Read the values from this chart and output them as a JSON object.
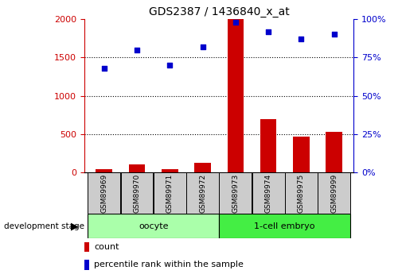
{
  "title": "GDS2387 / 1436840_x_at",
  "samples": [
    "GSM89969",
    "GSM89970",
    "GSM89971",
    "GSM89972",
    "GSM89973",
    "GSM89974",
    "GSM89975",
    "GSM89999"
  ],
  "counts": [
    50,
    105,
    50,
    125,
    2000,
    700,
    470,
    530
  ],
  "percentiles": [
    68,
    80,
    70,
    82,
    98,
    92,
    87,
    90
  ],
  "bar_color": "#cc0000",
  "scatter_color": "#0000cc",
  "ylim_left": [
    0,
    2000
  ],
  "ylim_right": [
    0,
    100
  ],
  "yticks_left": [
    0,
    500,
    1000,
    1500,
    2000
  ],
  "yticks_right": [
    0,
    25,
    50,
    75,
    100
  ],
  "groups": [
    {
      "label": "oocyte",
      "start": 0,
      "end": 3
    },
    {
      "label": "1-cell embryo",
      "start": 4,
      "end": 7
    }
  ],
  "group_label_prefix": "development stage",
  "legend_count_label": "count",
  "legend_percentile_label": "percentile rank within the sample",
  "title_color": "#000000",
  "left_axis_color": "#cc0000",
  "right_axis_color": "#0000cc",
  "grid_color": "#000000",
  "background_color": "#ffffff",
  "sample_box_color": "#cccccc",
  "oocyte_color": "#aaffaa",
  "embryo_color": "#44ee44",
  "title_fontsize": 10,
  "bar_width": 0.5
}
